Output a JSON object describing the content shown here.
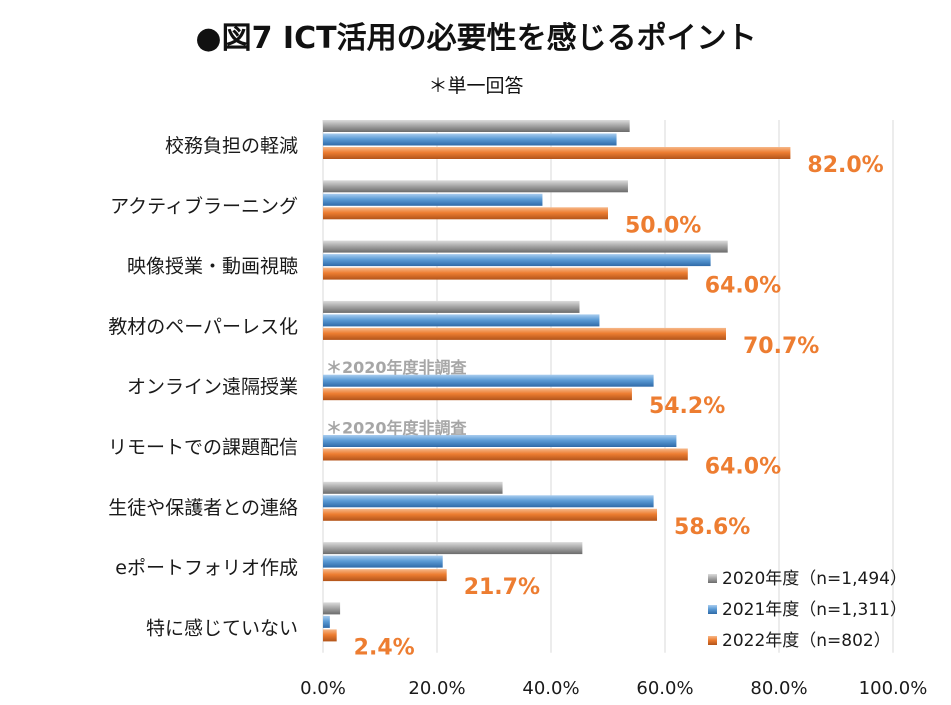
{
  "page": {
    "title_bullet": "●",
    "title_text": "図7  ICT活用の必要性を感じるポイント",
    "subtitle": "＊単一回答"
  },
  "colors": {
    "s2020": "#a5a5a5",
    "s2021": "#5b9bd5",
    "s2022": "#ed7d31",
    "gridline": "#d9d9d9",
    "note": "#a6a6a6"
  },
  "chart_data": {
    "type": "bar",
    "orientation": "horizontal",
    "title": "●図7  ICT活用の必要性を感じるポイント",
    "subtitle": "＊単一回答",
    "categories": [
      "校務負担の軽減",
      "アクティブラーニング",
      "映像授業・動画視聴",
      "教材のペーパーレス化",
      "オンライン遠隔授業",
      "リモートでの課題配信",
      "生徒や保護者との連絡",
      "eポートフォリオ作成",
      "特に感じていない"
    ],
    "series": [
      {
        "key": "s2020",
        "name": "2020年度（n=1,494）",
        "values": [
          53.8,
          53.5,
          71.0,
          45.0,
          null,
          null,
          31.5,
          45.5,
          3.0
        ]
      },
      {
        "key": "s2021",
        "name": "2021年度（n=1,311）",
        "values": [
          51.5,
          38.5,
          68.0,
          48.5,
          58.0,
          62.0,
          58.0,
          21.0,
          1.2
        ]
      },
      {
        "key": "s2022",
        "name": "2022年度（n=802）",
        "values": [
          82.0,
          50.0,
          64.0,
          70.7,
          54.2,
          64.0,
          58.6,
          21.7,
          2.4
        ]
      }
    ],
    "data_labels": [
      "82.0%",
      "50.0%",
      "64.0%",
      "70.7%",
      "54.2%",
      "64.0%",
      "58.6%",
      "21.7%",
      "2.4%"
    ],
    "notes": [
      {
        "category_index": 4,
        "text": "＊2020年度非調査"
      },
      {
        "category_index": 5,
        "text": "＊2020年度非調査"
      }
    ],
    "xlim": [
      0,
      100
    ],
    "xticks": [
      0,
      20,
      40,
      60,
      80,
      100
    ],
    "xtick_labels": [
      "0.0%",
      "20.0%",
      "40.0%",
      "60.0%",
      "80.0%",
      "100.0%"
    ],
    "grid": true,
    "legend_position": "bottom-right",
    "xlabel": "",
    "ylabel": ""
  }
}
